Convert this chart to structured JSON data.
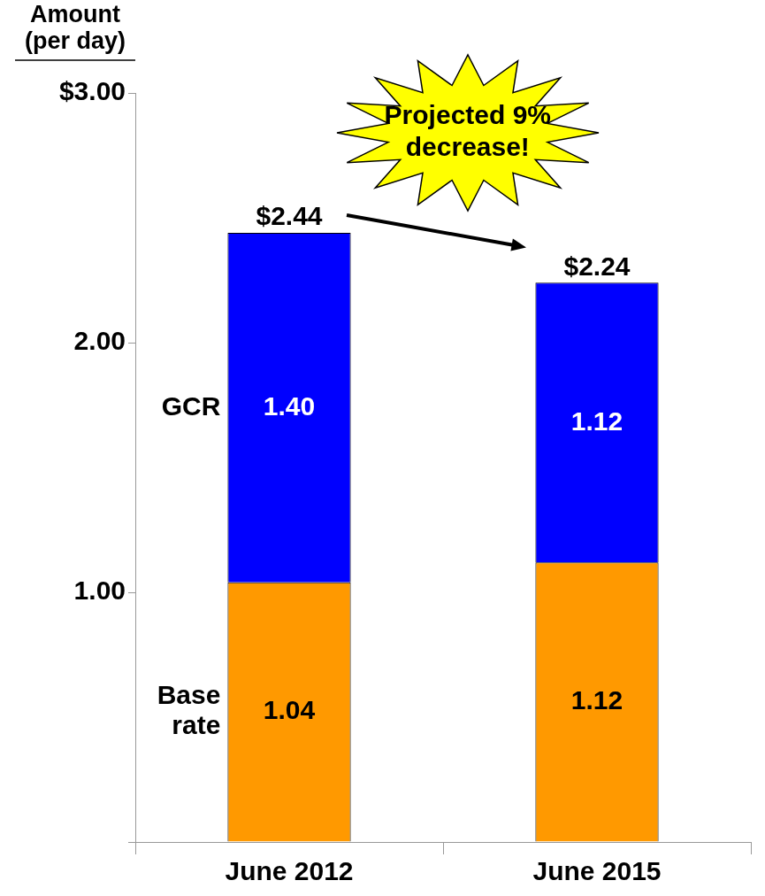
{
  "chart_data": {
    "type": "bar",
    "stacked": true,
    "ylabel": "Amount (per day)",
    "categories": [
      "June 2012",
      "June 2015"
    ],
    "series": [
      {
        "name": "Base rate",
        "color": "#ff9900",
        "values": [
          1.04,
          1.12
        ],
        "value_labels": [
          "1.04",
          "1.12"
        ]
      },
      {
        "name": "GCR",
        "color": "#0000ff",
        "values": [
          1.4,
          1.12
        ],
        "value_labels": [
          "1.40",
          "1.12"
        ]
      }
    ],
    "totals": [
      "$2.44",
      "$2.24"
    ],
    "ylim": [
      0,
      3
    ],
    "yticks": [
      {
        "value": 0,
        "label": null
      },
      {
        "value": 1,
        "label": "1.00"
      },
      {
        "value": 2,
        "label": "2.00"
      },
      {
        "value": 3,
        "label": "$3.00"
      }
    ],
    "grid": false,
    "legend": false,
    "annotations": [
      "Projected 9% decrease!"
    ]
  }
}
